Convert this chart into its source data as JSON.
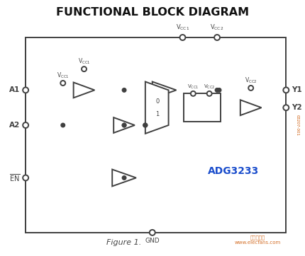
{
  "title": "FUNCTIONAL BLOCK DIAGRAM",
  "figure_label": "Figure 1.",
  "part_name": "ADG3233",
  "lc": "#404040",
  "blue_label": "#1a4dcc",
  "orange": "#cc5500"
}
